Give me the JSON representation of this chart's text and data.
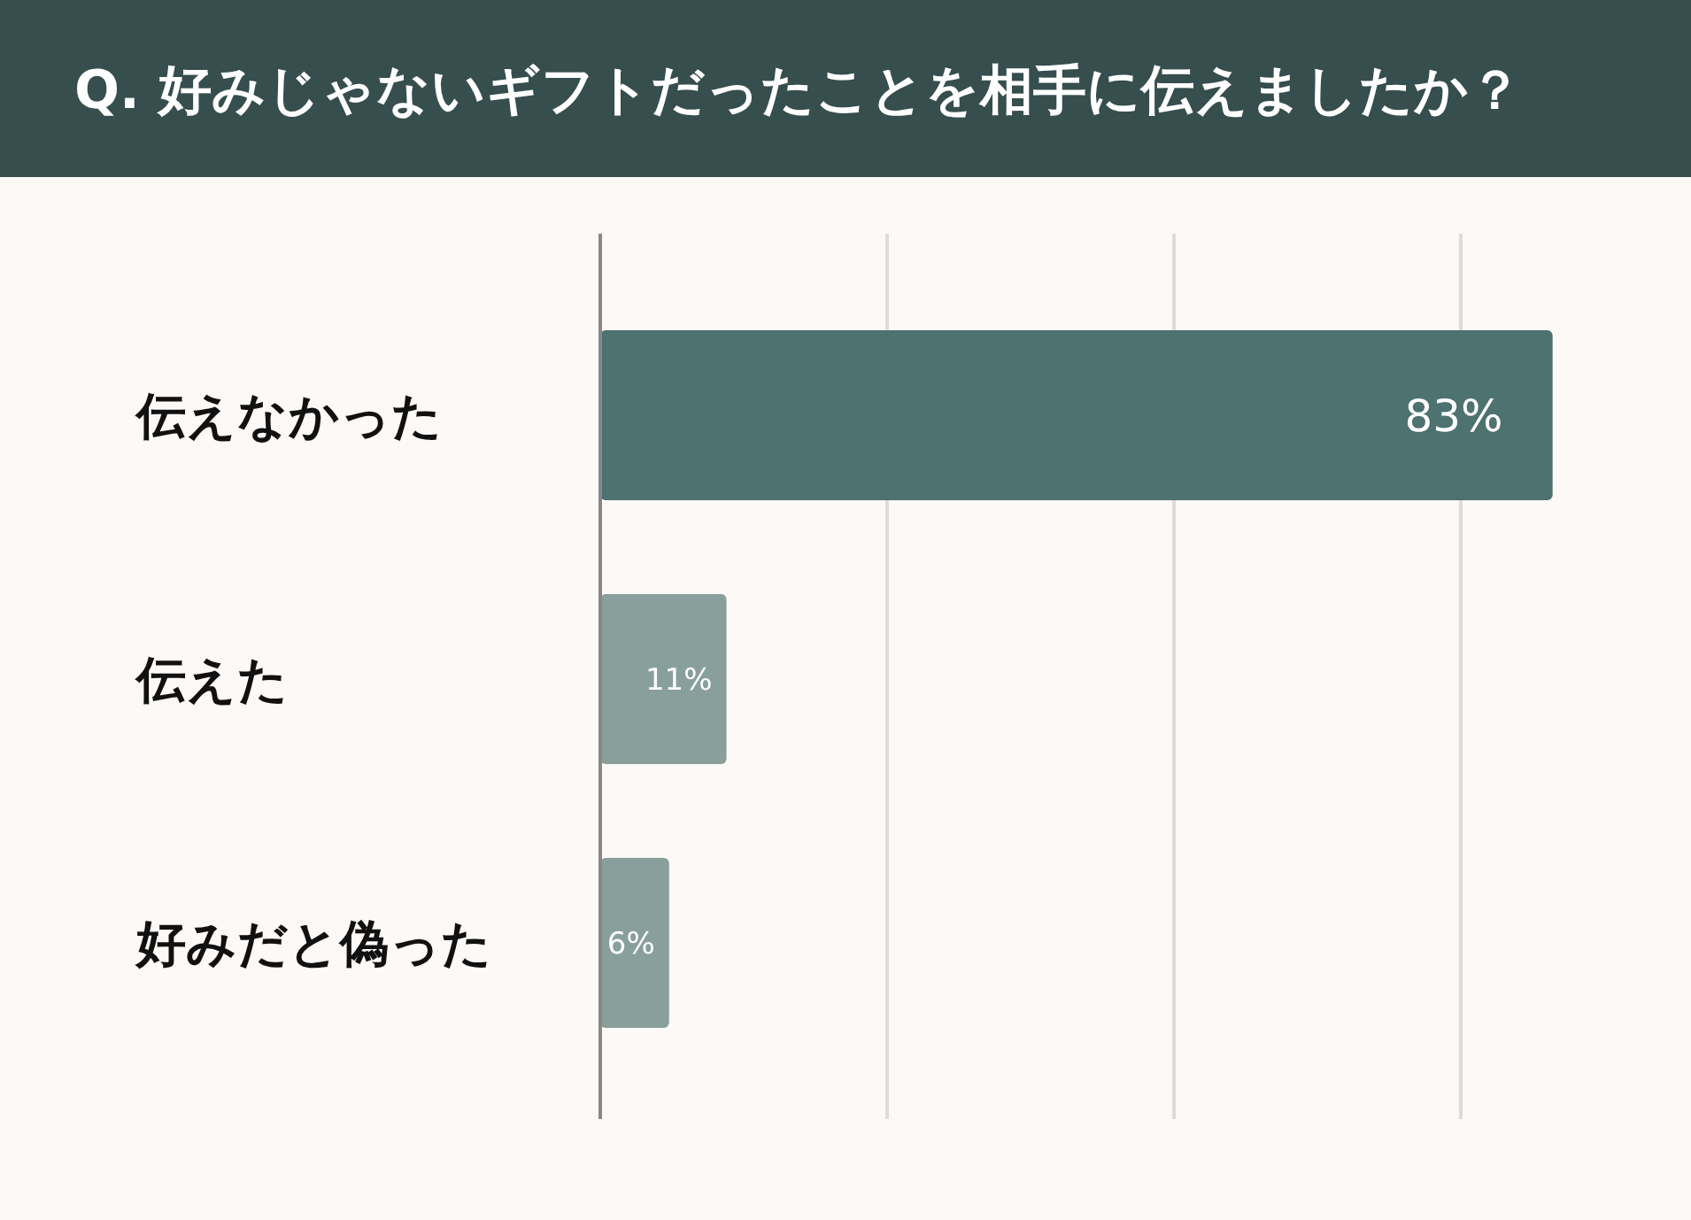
{
  "chart_data": {
    "type": "bar",
    "orientation": "horizontal",
    "title": "Q. 好みじゃないギフトだったことを相手に伝えましたか？",
    "categories": [
      "伝えなかった",
      "伝えた",
      "好みだと偽った"
    ],
    "values": [
      83,
      11,
      6
    ],
    "colors": [
      "#4d7270",
      "#889f9b",
      "#889f9b"
    ],
    "value_labels": [
      "83%",
      "11%",
      "6%"
    ],
    "xticks": [
      {
        "value": 25,
        "label": null
      },
      {
        "value": 50,
        "label": null
      },
      {
        "value": 75,
        "label": null
      }
    ],
    "grid": "x",
    "tick_labels": "y"
  }
}
